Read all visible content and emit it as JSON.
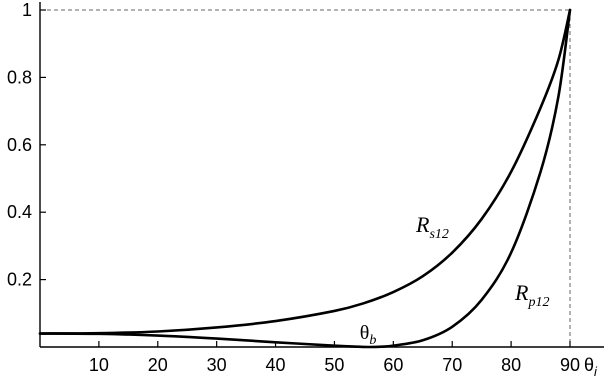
{
  "chart_data": {
    "type": "line",
    "title": "",
    "xlabel": "θ",
    "xlabel_subscript": "i",
    "ylabel": "",
    "xlim": [
      0,
      90
    ],
    "ylim": [
      0,
      1
    ],
    "x_ticks": [
      10,
      20,
      30,
      40,
      50,
      60,
      70,
      80,
      90
    ],
    "x_tick_labels": [
      "10",
      "20",
      "30",
      "40",
      "50",
      "60",
      "70",
      "80",
      "90"
    ],
    "y_ticks": [
      0.2,
      0.4,
      0.6,
      0.8,
      1
    ],
    "y_tick_labels": [
      "0.2",
      "0.4",
      "0.6",
      "0.8",
      "1"
    ],
    "grid": false,
    "series": [
      {
        "name": "R_s12",
        "label_main": "R",
        "label_sub": "s12",
        "x": [
          0,
          10,
          20,
          30,
          40,
          50,
          55,
          60,
          65,
          70,
          75,
          80,
          85,
          88,
          90
        ],
        "y": [
          0.04,
          0.041,
          0.046,
          0.058,
          0.077,
          0.107,
          0.13,
          0.163,
          0.21,
          0.28,
          0.38,
          0.52,
          0.71,
          0.85,
          1.0
        ]
      },
      {
        "name": "R_p12",
        "label_main": "R",
        "label_sub": "p12",
        "x": [
          0,
          10,
          20,
          30,
          40,
          50,
          54,
          56,
          58,
          60,
          65,
          70,
          75,
          80,
          85,
          88,
          90
        ],
        "y": [
          0.04,
          0.039,
          0.034,
          0.025,
          0.014,
          0.004,
          0.001,
          0.0,
          0.001,
          0.004,
          0.02,
          0.06,
          0.14,
          0.28,
          0.52,
          0.74,
          1.0
        ]
      }
    ],
    "annotations": [
      {
        "main": "θ",
        "sub": "b",
        "x": 56
      }
    ]
  }
}
